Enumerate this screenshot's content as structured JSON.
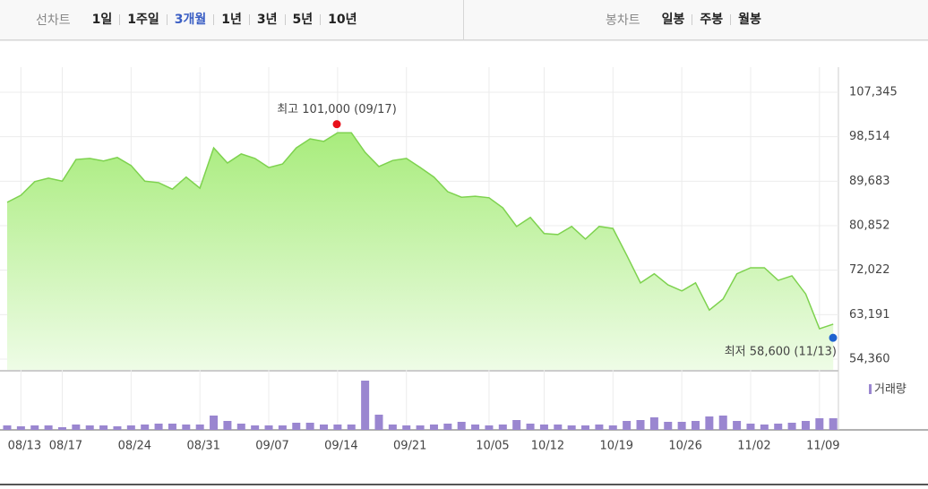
{
  "toolbar": {
    "line_chart": "선차트",
    "periods": [
      "1일",
      "1주일",
      "3개월",
      "1년",
      "3년",
      "5년",
      "10년"
    ],
    "active": 2,
    "candle_chart": "봉차트",
    "candle_periods": [
      "일봉",
      "주봉",
      "월봉"
    ]
  },
  "chart_data": {
    "type": "area",
    "categories": [
      null,
      "08/13",
      null,
      null,
      "08/17",
      null,
      null,
      null,
      null,
      "08/24",
      null,
      null,
      null,
      null,
      "08/31",
      null,
      null,
      null,
      null,
      "09/07",
      null,
      null,
      null,
      null,
      "09/14",
      null,
      null,
      null,
      null,
      "09/21",
      null,
      null,
      null,
      null,
      null,
      "10/05",
      null,
      null,
      null,
      "10/12",
      null,
      null,
      null,
      null,
      "10/19",
      null,
      null,
      null,
      null,
      "10/26",
      null,
      null,
      null,
      null,
      "11/02",
      null,
      null,
      null,
      null,
      "11/09",
      null
    ],
    "series": [
      {
        "color": "#7ed24f",
        "values": [
          85500,
          86900,
          89600,
          90300,
          89700,
          94000,
          94200,
          93700,
          94400,
          92800,
          89700,
          89400,
          88100,
          90500,
          88300,
          96300,
          93300,
          95100,
          94200,
          92400,
          93100,
          96300,
          98100,
          97600,
          99300,
          99300,
          95400,
          92600,
          93800,
          94200,
          92400,
          90500,
          87600,
          86500,
          86700,
          86400,
          84400,
          80700,
          82500,
          79300,
          79100,
          80700,
          78200,
          80700,
          80300,
          75000,
          69500,
          71300,
          69100,
          67900,
          69500,
          64100,
          66300,
          71300,
          72500,
          72500,
          70000,
          70900,
          67300,
          60400,
          61300
        ]
      }
    ],
    "volume": {
      "name": "거래량",
      "color": "#9a86d0",
      "values": [
        5,
        4,
        5,
        5,
        3,
        6,
        5,
        5,
        4,
        5,
        6,
        7,
        7,
        6,
        6,
        16,
        10,
        7,
        5,
        5,
        5,
        8,
        8,
        6,
        6,
        6,
        55,
        17,
        6,
        5,
        5,
        6,
        7,
        9,
        6,
        5,
        6,
        11,
        7,
        6,
        6,
        5,
        5,
        6,
        5,
        10,
        11,
        14,
        9,
        9,
        10,
        15,
        16,
        10,
        7,
        6,
        7,
        8,
        10,
        13,
        13
      ]
    },
    "ylim": [
      52226,
      112323
    ],
    "yticks": [
      {
        "value": 54360,
        "label": "54,360"
      },
      {
        "value": 63191,
        "label": "63,191"
      },
      {
        "value": 72022,
        "label": "72,022"
      },
      {
        "value": 80852,
        "label": "80,852"
      },
      {
        "value": 89683,
        "label": "89,683"
      },
      {
        "value": 98514,
        "label": "98,514"
      },
      {
        "value": 107345,
        "label": "107,345"
      }
    ],
    "grid": true,
    "annotations": [
      {
        "text": "최고 101,000 (09/17)",
        "value": 101000,
        "color": "#e8101a"
      },
      {
        "text": "최저 58,600 (11/13)",
        "value": 58600,
        "color": "#1f63cf"
      }
    ]
  }
}
